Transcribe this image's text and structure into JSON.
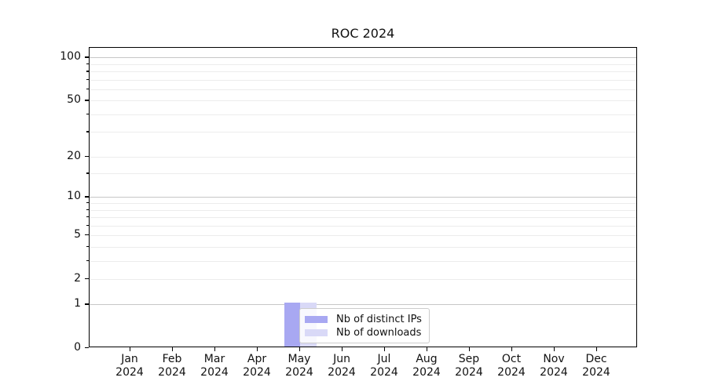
{
  "chart_data": {
    "type": "bar",
    "title": "ROC 2024",
    "categories": [
      {
        "month": "Jan",
        "year": "2024"
      },
      {
        "month": "Feb",
        "year": "2024"
      },
      {
        "month": "Mar",
        "year": "2024"
      },
      {
        "month": "Apr",
        "year": "2024"
      },
      {
        "month": "May",
        "year": "2024"
      },
      {
        "month": "Jun",
        "year": "2024"
      },
      {
        "month": "Jul",
        "year": "2024"
      },
      {
        "month": "Aug",
        "year": "2024"
      },
      {
        "month": "Sep",
        "year": "2024"
      },
      {
        "month": "Oct",
        "year": "2024"
      },
      {
        "month": "Nov",
        "year": "2024"
      },
      {
        "month": "Dec",
        "year": "2024"
      }
    ],
    "series": [
      {
        "name": "Nb of distinct IPs",
        "color": "#a8a8f2",
        "values": [
          0,
          0,
          0,
          0,
          1,
          0,
          0,
          0,
          0,
          0,
          0,
          0
        ]
      },
      {
        "name": "Nb of downloads",
        "color": "#d9d9f7",
        "values": [
          0,
          0,
          0,
          0,
          1,
          0,
          0,
          0,
          0,
          0,
          0,
          0
        ]
      }
    ],
    "y_axis": {
      "scale": "log1p",
      "max": 117,
      "tick_values": [
        0,
        1,
        2,
        5,
        10,
        20,
        50,
        100
      ],
      "major_grid_values": [
        1,
        10,
        100
      ],
      "minor_grid_values": [
        2,
        3,
        4,
        5,
        6,
        7,
        8,
        9,
        15,
        20,
        30,
        40,
        50,
        60,
        70,
        80,
        90
      ]
    },
    "legend": {
      "position": "lower-center"
    },
    "grid": "horizontal-only"
  },
  "colors": {
    "background": "#ffffff",
    "axis": "#000000",
    "grid_major": "#c6c6c6",
    "grid_minor": "#ececec",
    "legend_border": "#cccccc"
  }
}
